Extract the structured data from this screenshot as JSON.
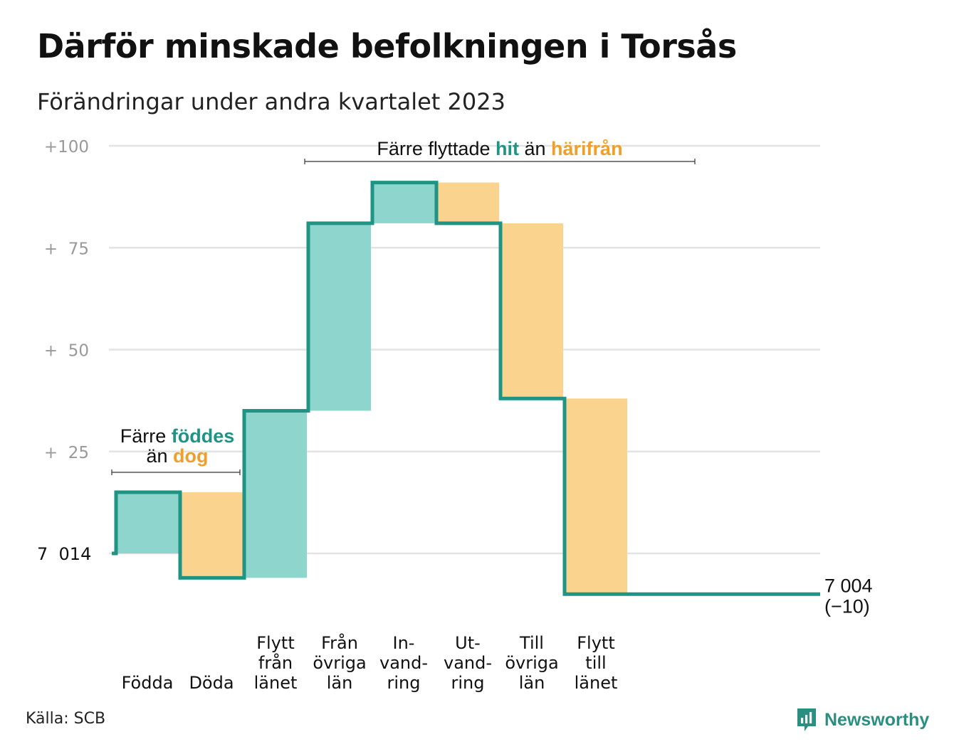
{
  "title": "Därför minskade befolkningen i Torsås",
  "subtitle": "Förändringar under andra kvartalet 2023",
  "source": "Källa: SCB",
  "brand": "Newsworthy",
  "colors": {
    "increase": "#8ed5cd",
    "decrease": "#fad48e",
    "line": "#1f9484",
    "teal_text": "#1f9484",
    "orange_text": "#f0a02a",
    "grid": "#e3e3e3",
    "tick_text": "#999999"
  },
  "chart_data": {
    "type": "bar",
    "subtype": "waterfall",
    "baseline": 7014,
    "baseline_label": "7  014",
    "end_value": 7004,
    "end_label": "7 004",
    "end_change_label": "(−10)",
    "y_ticks": [
      {
        "value": 100,
        "label": "+100"
      },
      {
        "value": 75,
        "label": "+  75"
      },
      {
        "value": 50,
        "label": "+  50"
      },
      {
        "value": 25,
        "label": "+  25"
      }
    ],
    "ylim": [
      -15,
      105
    ],
    "grid": true,
    "steps": [
      {
        "label": [
          "Födda"
        ],
        "change": 15,
        "kind": "increase"
      },
      {
        "label": [
          "Döda"
        ],
        "change": -21,
        "kind": "decrease"
      },
      {
        "label": [
          "Flytt",
          "från",
          "länet"
        ],
        "change": 41,
        "kind": "increase"
      },
      {
        "label": [
          "Från",
          "övriga",
          "län"
        ],
        "change": 46,
        "kind": "increase"
      },
      {
        "label": [
          "In-",
          "vand-",
          "ring"
        ],
        "change": 10,
        "kind": "increase"
      },
      {
        "label": [
          "Ut-",
          "vand-",
          "ring"
        ],
        "change": -10,
        "kind": "decrease"
      },
      {
        "label": [
          "Till",
          "övriga",
          "län"
        ],
        "change": -43,
        "kind": "decrease"
      },
      {
        "label": [
          "Flytt",
          "till",
          "länet"
        ],
        "change": -48,
        "kind": "decrease"
      }
    ],
    "annotations": [
      {
        "parts": [
          "Färre ",
          "föddes"
        ],
        "parts2": [
          "än ",
          "dog"
        ],
        "covers_steps": [
          0,
          1
        ]
      },
      {
        "parts": [
          "Färre flyttade ",
          "hit",
          " än ",
          "härifrån"
        ],
        "covers_steps": [
          3,
          7
        ]
      }
    ]
  }
}
